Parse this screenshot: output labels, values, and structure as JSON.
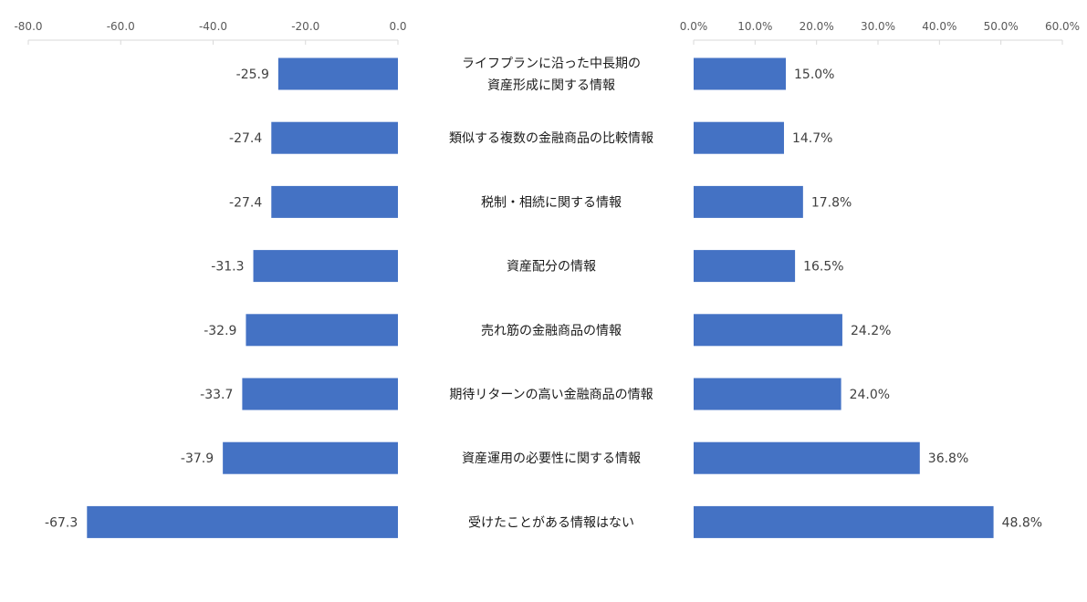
{
  "chart_data": {
    "type": "bar",
    "orientation": "horizontal",
    "layout": "diverging-butterfly",
    "categories": [
      [
        "ライフプランに沿った中長期の",
        "資産形成に関する情報"
      ],
      [
        "類似する複数の金融商品の比較情報"
      ],
      [
        "税制・相続に関する情報"
      ],
      [
        "資産配分の情報"
      ],
      [
        "売れ筋の金融商品の情報"
      ],
      [
        "期待リターンの高い金融商品の情報"
      ],
      [
        "資産運用の必要性に関する情報"
      ],
      [
        "受けたことがある情報はない"
      ]
    ],
    "series": [
      {
        "values": [
          -25.9,
          -27.4,
          -27.4,
          -31.3,
          -32.9,
          -33.7,
          -37.9,
          -67.3
        ],
        "value_labels": [
          "-25.9",
          "-27.4",
          "-27.4",
          "-31.3",
          "-32.9",
          "-33.7",
          "-37.9",
          "-67.3"
        ],
        "color": "#4472C4",
        "axis": {
          "min": -80,
          "max": 0,
          "ticks": [
            -80,
            -60,
            -40,
            -20,
            0
          ],
          "tick_labels": [
            "-80.0",
            "-60.0",
            "-40.0",
            "-20.0",
            "0.0"
          ]
        }
      },
      {
        "values": [
          15.0,
          14.7,
          17.8,
          16.5,
          24.2,
          24.0,
          36.8,
          48.8
        ],
        "value_labels": [
          "15.0%",
          "14.7%",
          "17.8%",
          "16.5%",
          "24.2%",
          "24.0%",
          "36.8%",
          "48.8%"
        ],
        "color": "#4472C4",
        "axis": {
          "min": 0,
          "max": 60,
          "ticks": [
            0,
            10,
            20,
            30,
            40,
            50,
            60
          ],
          "tick_labels": [
            "0.0%",
            "10.0%",
            "20.0%",
            "30.0%",
            "40.0%",
            "50.0%",
            "60.0%"
          ]
        }
      }
    ],
    "axis_position": "top",
    "grid": false,
    "legend": "none"
  }
}
